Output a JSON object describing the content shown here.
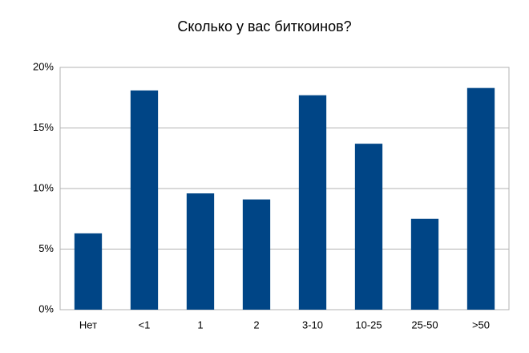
{
  "chart_data": {
    "type": "bar",
    "title": "Сколько у вас биткоинов?",
    "categories": [
      "Нет",
      "<1",
      "1",
      "2",
      "3-10",
      "10-25",
      "25-50",
      ">50"
    ],
    "values": [
      6.3,
      18.1,
      9.6,
      9.1,
      17.7,
      13.7,
      7.5,
      18.3
    ],
    "color": "#004586",
    "ylim": [
      0,
      20
    ],
    "yticks": [
      {
        "value": 0,
        "label": "0%"
      },
      {
        "value": 5,
        "label": "5%"
      },
      {
        "value": 10,
        "label": "10%"
      },
      {
        "value": 15,
        "label": "15%"
      },
      {
        "value": 20,
        "label": "20%"
      }
    ],
    "grid": true
  }
}
